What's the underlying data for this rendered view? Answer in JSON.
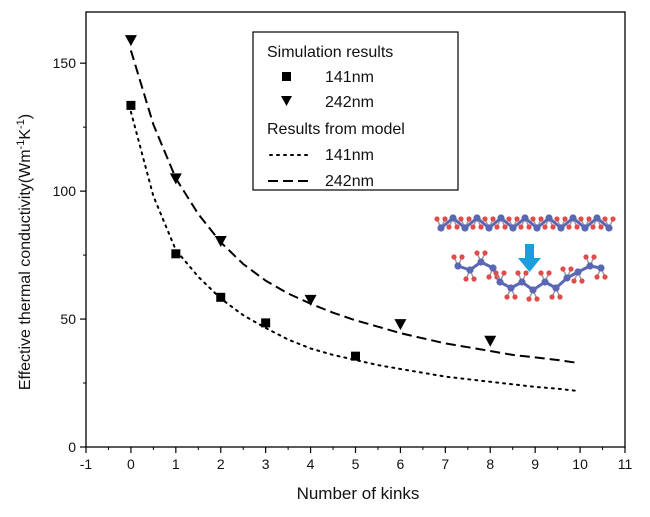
{
  "chart_data": {
    "type": "scatter",
    "title": "",
    "xlabel": "Number of kinks",
    "ylabel_main": "Effective thermal conductivity(Wm",
    "ylabel_exp1": "-1",
    "ylabel_mid": "K",
    "ylabel_exp2": "-1",
    "ylabel_end": ")",
    "xlim": [
      -1,
      11
    ],
    "ylim": [
      0,
      170
    ],
    "xticks": [
      -1,
      0,
      1,
      2,
      3,
      4,
      5,
      6,
      7,
      8,
      9,
      10,
      11
    ],
    "yticks": [
      0,
      50,
      100,
      150
    ],
    "grid": false,
    "legend_position": "top-center",
    "legend": {
      "group1_title": "Simulation results",
      "group2_title": "Results from model",
      "entries": [
        "141nm",
        "242nm",
        "141nm",
        "242nm"
      ]
    },
    "series": [
      {
        "name": "141nm",
        "group": "Simulation results",
        "kind": "points",
        "marker": "square",
        "x": [
          0,
          1,
          2,
          3,
          5
        ],
        "y": [
          133.5,
          75.5,
          58.5,
          48.5,
          35.5
        ]
      },
      {
        "name": "242nm",
        "group": "Simulation results",
        "kind": "points",
        "marker": "triangle-down",
        "x": [
          0,
          1,
          2,
          4,
          6,
          8
        ],
        "y": [
          159,
          105,
          80.5,
          57.5,
          48,
          41.5
        ]
      },
      {
        "name": "141nm",
        "group": "Results from model",
        "kind": "line",
        "style": "dotted",
        "x": [
          0,
          0.5,
          1,
          1.5,
          2,
          2.5,
          3,
          3.5,
          4,
          4.5,
          5,
          5.5,
          6,
          6.5,
          7,
          7.5,
          8,
          8.5,
          9,
          9.5,
          9.9
        ],
        "y": [
          131,
          98,
          77,
          66.5,
          58,
          51.5,
          46.5,
          42,
          38.5,
          36,
          34,
          32,
          30.5,
          29,
          27.5,
          26.5,
          25.5,
          24.5,
          23.5,
          22.8,
          22
        ]
      },
      {
        "name": "242nm",
        "group": "Results from model",
        "kind": "line",
        "style": "dashed",
        "x": [
          0,
          0.5,
          1,
          1.5,
          2,
          2.5,
          3,
          3.5,
          4,
          4.5,
          5,
          5.5,
          6,
          6.5,
          7,
          7.5,
          8,
          8.5,
          9,
          9.5,
          9.9
        ],
        "y": [
          155,
          126,
          105,
          91,
          80,
          71.5,
          65,
          60,
          56,
          52.5,
          49.5,
          47,
          44.5,
          42.5,
          40.5,
          39,
          37.5,
          36,
          35,
          34,
          33
        ]
      }
    ],
    "colors": {
      "axis": "#000000",
      "marker": "#000000",
      "line": "#000000",
      "molecule_carbon": "#5a67b4",
      "molecule_hydrogen": "#e14b4b",
      "arrow": "#1a9fdc"
    }
  }
}
